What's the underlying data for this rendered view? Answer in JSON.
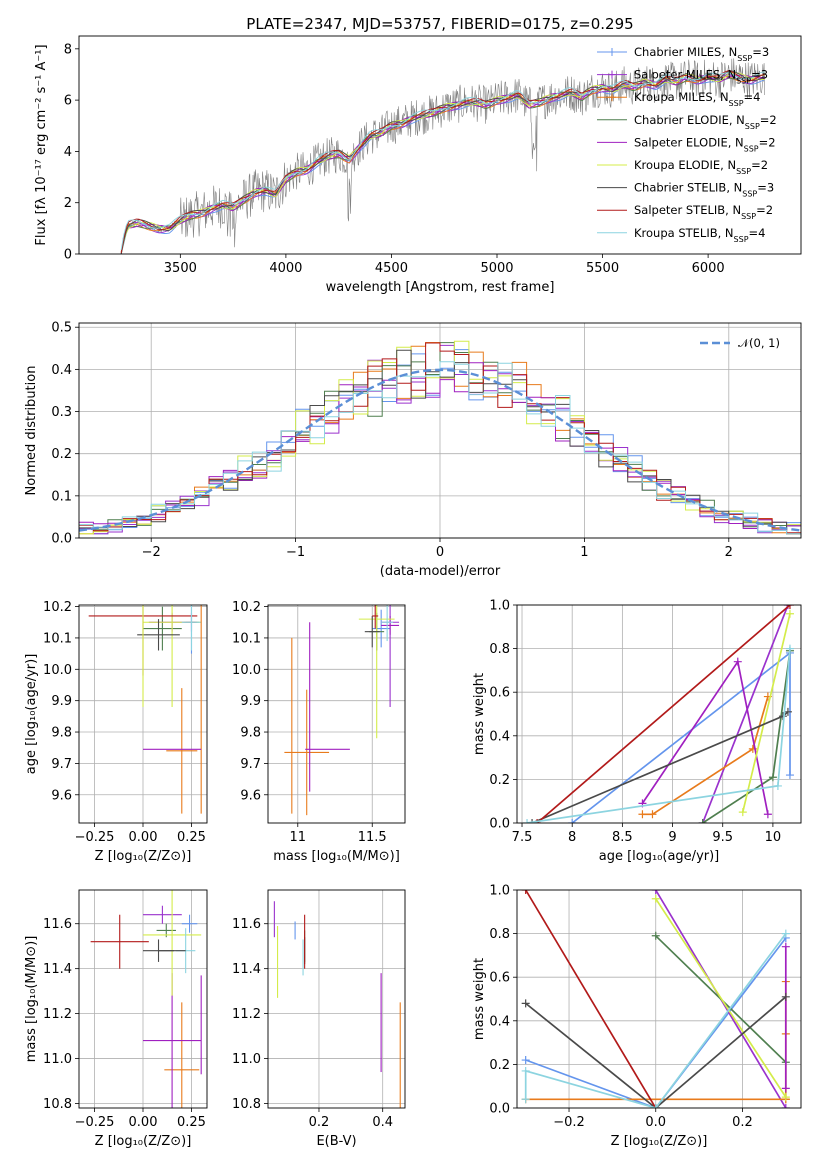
{
  "figure": {
    "title": "PLATE=2347, MJD=53757, FIBERID=0175, z=0.295"
  },
  "models": [
    {
      "name": "Chabrier MILES",
      "nssp": "3",
      "color": "#6495ed"
    },
    {
      "name": "Salpeter MILES",
      "nssp": "3",
      "color": "#9a32cd"
    },
    {
      "name": "Kroupa MILES",
      "nssp": "4",
      "color": "#e87b1c"
    },
    {
      "name": "Chabrier ELODIE",
      "nssp": "2",
      "color": "#4f7f4f"
    },
    {
      "name": "Salpeter ELODIE",
      "nssp": "2",
      "color": "#a020c0"
    },
    {
      "name": "Kroupa ELODIE",
      "nssp": "2",
      "color": "#d4ec4a"
    },
    {
      "name": "Chabrier STELIB",
      "nssp": "3",
      "color": "#4a4a4a"
    },
    {
      "name": "Salpeter STELIB",
      "nssp": "2",
      "color": "#b21a1a"
    },
    {
      "name": "Kroupa STELIB",
      "nssp": "4",
      "color": "#8cd4e0"
    }
  ],
  "chart_data": [
    {
      "id": "spectrum",
      "type": "line",
      "xlabel": "wavelength [Angstrom, rest frame]",
      "ylabel": "Flux [fλ 10⁻¹⁷ erg cm⁻² s⁻¹ A⁻¹]",
      "xlim": [
        3020,
        6440
      ],
      "ylim": [
        0,
        8.5
      ],
      "xticks": [
        3500,
        4000,
        4500,
        5000,
        5500,
        6000
      ],
      "yticks": [
        0,
        2,
        4,
        6,
        8
      ],
      "legend_loc": "upper right",
      "data_color": "#808080",
      "model_envelope": {
        "x": [
          3220,
          3250,
          3300,
          3350,
          3400,
          3450,
          3500,
          3550,
          3600,
          3650,
          3700,
          3750,
          3800,
          3850,
          3900,
          3950,
          4000,
          4050,
          4100,
          4150,
          4200,
          4250,
          4300,
          4350,
          4400,
          4450,
          4500,
          4550,
          4600,
          4650,
          4700,
          4750,
          4800,
          4850,
          4900,
          4950,
          5000,
          5050,
          5100,
          5150,
          5200,
          5250,
          5300,
          5350,
          5400,
          5450,
          5500,
          5550,
          5600,
          5650,
          5700,
          5750,
          5800,
          5850,
          5900,
          5950,
          6000,
          6050,
          6100,
          6150,
          6200,
          6250
        ],
        "y": [
          0.2,
          1.1,
          1.2,
          1.1,
          1.0,
          1.0,
          1.3,
          1.5,
          1.6,
          1.8,
          1.9,
          1.8,
          2.1,
          2.4,
          2.5,
          2.3,
          2.9,
          3.2,
          3.3,
          3.6,
          3.8,
          3.9,
          3.7,
          4.2,
          4.6,
          4.7,
          5.0,
          5.1,
          5.3,
          5.4,
          5.5,
          5.7,
          5.8,
          5.9,
          5.9,
          5.8,
          6.0,
          6.1,
          6.2,
          5.8,
          5.9,
          6.1,
          6.2,
          6.3,
          6.1,
          6.4,
          6.5,
          6.4,
          6.6,
          6.5,
          6.7,
          6.6,
          6.8,
          6.7,
          6.9,
          6.8,
          6.9,
          6.8,
          7.0,
          6.9,
          6.8,
          6.9
        ]
      }
    },
    {
      "id": "residuals",
      "type": "histogram",
      "xlabel": "(data-model)/error",
      "ylabel": "Normed distribution",
      "xlim": [
        -2.5,
        2.5
      ],
      "ylim": [
        0,
        0.51
      ],
      "xticks": [
        -2,
        -1,
        0,
        1,
        2
      ],
      "yticks": [
        0.0,
        0.1,
        0.2,
        0.3,
        0.4,
        0.5
      ],
      "grid": true,
      "legend": "𝒩(0, 1)",
      "legend_loc": "upper right",
      "gaussian": {
        "mean": 0,
        "sigma": 1,
        "color": "#5b8fd6"
      },
      "bin_width": 0.1
    },
    {
      "id": "age_vs_Z",
      "type": "errorbar",
      "xlabel": "Z [log₁₀(Z/Z⊙)]",
      "ylabel": "age  [log₁₀(age/yr)]",
      "xlim": [
        -0.33,
        0.33
      ],
      "ylim": [
        9.51,
        10.205
      ],
      "xticks": [
        -0.25,
        0.0,
        0.25
      ],
      "xtick_labels": [
        "−0.25",
        "0.00",
        "0.25"
      ],
      "yticks": [
        9.6,
        9.7,
        9.8,
        9.9,
        10.0,
        10.1,
        10.2
      ],
      "grid": true,
      "points": [
        {
          "model": 0,
          "x": 0.25,
          "y": 10.15,
          "xerr": 0.04,
          "yerr": 0.1
        },
        {
          "model": 1,
          "x": 0.25,
          "y": 10.15,
          "xerr": 0.03,
          "yerr": 0.03
        },
        {
          "model": 2,
          "x": 0.2,
          "y": 9.74,
          "xerr": 0.08,
          "yerr": 0.2
        },
        {
          "model": 3,
          "x": 0.1,
          "y": 10.13,
          "xerr": 0.1,
          "yerr": 0.07
        },
        {
          "model": 4,
          "x": 0.15,
          "y": 10.15,
          "xerr": 0.12,
          "yerr": 0.03
        },
        {
          "model": 5,
          "x": 0.15,
          "y": 10.15,
          "xerr": 0.15,
          "yerr": 0.27
        },
        {
          "model": 6,
          "x": 0.08,
          "y": 10.11,
          "xerr": 0.11,
          "yerr": 0.05
        },
        {
          "model": 7,
          "x": 0.0,
          "y": 10.17,
          "xerr": 0.28,
          "yerr": 0.19
        },
        {
          "model": 8,
          "x": 0.25,
          "y": 10.15,
          "xerr": 0.05,
          "yerr": 0.09
        },
        {
          "model": 2,
          "x": 0.3,
          "y": 9.93,
          "xerr": 0.0,
          "yerr": 0.39
        },
        {
          "model": 5,
          "x": 0.0,
          "y": 10.06,
          "xerr": 0.0,
          "yerr": 0.18
        },
        {
          "model": 4,
          "x": 0.15,
          "y": 9.745,
          "xerr": 0.15,
          "yerr": 0.0
        }
      ]
    },
    {
      "id": "age_vs_mass",
      "type": "errorbar",
      "xlabel": "mass [log₁₀(M/M⊙)]",
      "xlim": [
        10.8,
        11.72
      ],
      "ylim": [
        9.51,
        10.205
      ],
      "xticks": [
        11.0,
        11.5
      ],
      "yticks": [
        9.6,
        9.7,
        9.8,
        9.9,
        10.0,
        10.1,
        10.2
      ],
      "grid": true,
      "points": [
        {
          "model": 0,
          "x": 11.56,
          "y": 10.13,
          "xerr": 0.06,
          "yerr": 0.06
        },
        {
          "model": 1,
          "x": 11.62,
          "y": 10.15,
          "xerr": 0.06,
          "yerr": 0.27
        },
        {
          "model": 2,
          "x": 11.06,
          "y": 9.735,
          "xerr": 0.15,
          "yerr": 0.2
        },
        {
          "model": 3,
          "x": 11.53,
          "y": 10.12,
          "xerr": 0.05,
          "yerr": 0.06
        },
        {
          "model": 4,
          "x": 11.62,
          "y": 10.14,
          "xerr": 0.06,
          "yerr": 0.03
        },
        {
          "model": 5,
          "x": 11.53,
          "y": 10.16,
          "xerr": 0.12,
          "yerr": 0.38
        },
        {
          "model": 6,
          "x": 11.5,
          "y": 10.12,
          "xerr": 0.05,
          "yerr": 0.05
        },
        {
          "model": 7,
          "x": 11.52,
          "y": 10.17,
          "xerr": 0.02,
          "yerr": 0.04
        },
        {
          "model": 8,
          "x": 11.6,
          "y": 10.15,
          "xerr": 0.04,
          "yerr": 0.06
        },
        {
          "model": 2,
          "x": 10.96,
          "y": 9.82,
          "xerr": 0.0,
          "yerr": 0.28
        },
        {
          "model": 4,
          "x": 11.08,
          "y": 9.88,
          "xerr": 0.0,
          "yerr": 0.27
        },
        {
          "model": 4,
          "x": 11.2,
          "y": 9.745,
          "xerr": 0.15,
          "yerr": 0.0
        }
      ]
    },
    {
      "id": "massweight_vs_age",
      "type": "line",
      "xlabel": "age  [log₁₀(age/yr)]",
      "ylabel": "mass weight",
      "xlim": [
        7.45,
        10.28
      ],
      "ylim": [
        0,
        1
      ],
      "xticks": [
        7.5,
        8.0,
        8.5,
        9.0,
        9.5,
        10.0
      ],
      "yticks": [
        0.0,
        0.2,
        0.4,
        0.6,
        0.8,
        1.0
      ],
      "grid": true,
      "series": [
        {
          "model": 0,
          "x": [
            8.0,
            10.17,
            10.17
          ],
          "y": [
            0.0,
            0.78,
            0.22
          ]
        },
        {
          "model": 1,
          "x": [
            9.3,
            10.15
          ],
          "y": [
            0.0,
            1.0
          ]
        },
        {
          "model": 2,
          "x": [
            8.7,
            8.8,
            9.8,
            9.95
          ],
          "y": [
            0.04,
            0.04,
            0.34,
            0.58
          ]
        },
        {
          "model": 3,
          "x": [
            9.3,
            10.0,
            10.17
          ],
          "y": [
            0.0,
            0.21,
            0.79
          ]
        },
        {
          "model": 4,
          "x": [
            8.7,
            9.65,
            9.95
          ],
          "y": [
            0.09,
            0.74,
            0.04
          ]
        },
        {
          "model": 5,
          "x": [
            9.7,
            10.17
          ],
          "y": [
            0.05,
            0.96
          ]
        },
        {
          "model": 6,
          "x": [
            7.6,
            10.1,
            10.15
          ],
          "y": [
            0.0,
            0.49,
            0.51
          ]
        },
        {
          "model": 7,
          "x": [
            7.65,
            10.17
          ],
          "y": [
            0.0,
            1.0
          ]
        },
        {
          "model": 8,
          "x": [
            7.55,
            10.05,
            10.17
          ],
          "y": [
            0.0,
            0.17,
            0.8
          ]
        }
      ]
    },
    {
      "id": "mass_vs_Z",
      "type": "errorbar",
      "xlabel": "Z [log₁₀(Z/Z⊙)]",
      "ylabel": "mass [log₁₀(M/M⊙)]",
      "xlim": [
        -0.33,
        0.33
      ],
      "ylim": [
        10.78,
        11.75
      ],
      "xticks": [
        -0.25,
        0.0,
        0.25
      ],
      "xtick_labels": [
        "−0.25",
        "0.00",
        "0.25"
      ],
      "yticks": [
        10.8,
        11.0,
        11.2,
        11.4,
        11.6
      ],
      "grid": true,
      "points": [
        {
          "model": 0,
          "x": 0.24,
          "y": 11.6,
          "xerr": 0.04,
          "yerr": 0.04
        },
        {
          "model": 1,
          "x": 0.1,
          "y": 11.64,
          "xerr": 0.1,
          "yerr": 0.04
        },
        {
          "model": 2,
          "x": 0.2,
          "y": 10.95,
          "xerr": 0.09,
          "yerr": 0.3
        },
        {
          "model": 3,
          "x": 0.12,
          "y": 11.57,
          "xerr": 0.05,
          "yerr": 0.03
        },
        {
          "model": 4,
          "x": 0.15,
          "y": 11.08,
          "xerr": 0.15,
          "yerr": 0.3
        },
        {
          "model": 5,
          "x": 0.15,
          "y": 11.55,
          "xerr": 0.15,
          "yerr": 0.27
        },
        {
          "model": 6,
          "x": 0.08,
          "y": 11.48,
          "xerr": 0.08,
          "yerr": 0.05
        },
        {
          "model": 7,
          "x": -0.12,
          "y": 11.52,
          "xerr": 0.15,
          "yerr": 0.12
        },
        {
          "model": 8,
          "x": 0.22,
          "y": 11.48,
          "xerr": 0.05,
          "yerr": 0.1
        },
        {
          "model": 6,
          "x": 0.15,
          "y": 11.48,
          "xerr": 0.07,
          "yerr": 0.0
        },
        {
          "model": 4,
          "x": 0.3,
          "y": 11.15,
          "xerr": 0.0,
          "yerr": 0.22
        }
      ]
    },
    {
      "id": "mass_vs_ebv",
      "type": "errorbar",
      "xlabel": "E(B-V)",
      "xlim": [
        0.04,
        0.47
      ],
      "ylim": [
        10.78,
        11.75
      ],
      "xticks": [
        0.2,
        0.4
      ],
      "yticks": [
        10.8,
        11.0,
        11.2,
        11.4,
        11.6
      ],
      "grid": true,
      "points": [
        {
          "model": 0,
          "x": 0.125,
          "y": 11.57,
          "xerr": 0.0,
          "yerr": 0.04
        },
        {
          "model": 1,
          "x": 0.06,
          "y": 11.62,
          "xerr": 0.0,
          "yerr": 0.08
        },
        {
          "model": 2,
          "x": 0.455,
          "y": 11.0,
          "xerr": 0.0,
          "yerr": 0.25
        },
        {
          "model": 3,
          "x": 0.155,
          "y": 11.5,
          "xerr": 0.0,
          "yerr": 0.07
        },
        {
          "model": 4,
          "x": 0.395,
          "y": 11.16,
          "xerr": 0.0,
          "yerr": 0.22
        },
        {
          "model": 5,
          "x": 0.07,
          "y": 11.43,
          "xerr": 0.0,
          "yerr": 0.16
        },
        {
          "model": 6,
          "x": 0.155,
          "y": 11.48,
          "xerr": 0.0,
          "yerr": 0.06
        },
        {
          "model": 7,
          "x": 0.155,
          "y": 11.52,
          "xerr": 0.0,
          "yerr": 0.12
        },
        {
          "model": 8,
          "x": 0.15,
          "y": 11.45,
          "xerr": 0.0,
          "yerr": 0.08
        }
      ]
    },
    {
      "id": "massweight_vs_Z",
      "type": "line",
      "xlabel": "Z [log₁₀(Z/Z⊙)]",
      "ylabel": "mass weight",
      "xlim": [
        -0.32,
        0.335
      ],
      "ylim": [
        0,
        1
      ],
      "xticks": [
        -0.2,
        0.0,
        0.2
      ],
      "xtick_labels": [
        "−0.2",
        "0.0",
        "0.2"
      ],
      "yticks": [
        0.0,
        0.2,
        0.4,
        0.6,
        0.8,
        1.0
      ],
      "grid": true,
      "series": [
        {
          "model": 0,
          "x": [
            -0.3,
            0.0,
            0.3
          ],
          "y": [
            0.22,
            0.0,
            0.78
          ]
        },
        {
          "model": 1,
          "x": [
            0.0,
            0.3
          ],
          "y": [
            1.0,
            0.0
          ]
        },
        {
          "model": 2,
          "x": [
            -0.3,
            0.3,
            0.3,
            0.3,
            0.3
          ],
          "y": [
            0.04,
            0.04,
            0.34,
            0.58,
            0.04
          ]
        },
        {
          "model": 3,
          "x": [
            0.0,
            0.3
          ],
          "y": [
            0.79,
            0.21
          ]
        },
        {
          "model": 4,
          "x": [
            0.3,
            0.3
          ],
          "y": [
            0.74,
            0.09
          ]
        },
        {
          "model": 5,
          "x": [
            0.0,
            0.3
          ],
          "y": [
            0.96,
            0.05
          ]
        },
        {
          "model": 6,
          "x": [
            -0.3,
            0.0,
            0.3
          ],
          "y": [
            0.48,
            0.0,
            0.51
          ]
        },
        {
          "model": 7,
          "x": [
            -0.3,
            0.0
          ],
          "y": [
            1.0,
            0.0
          ]
        },
        {
          "model": 8,
          "x": [
            -0.3,
            -0.3,
            0.0,
            0.3
          ],
          "y": [
            0.04,
            0.17,
            0.0,
            0.8
          ]
        }
      ]
    }
  ]
}
